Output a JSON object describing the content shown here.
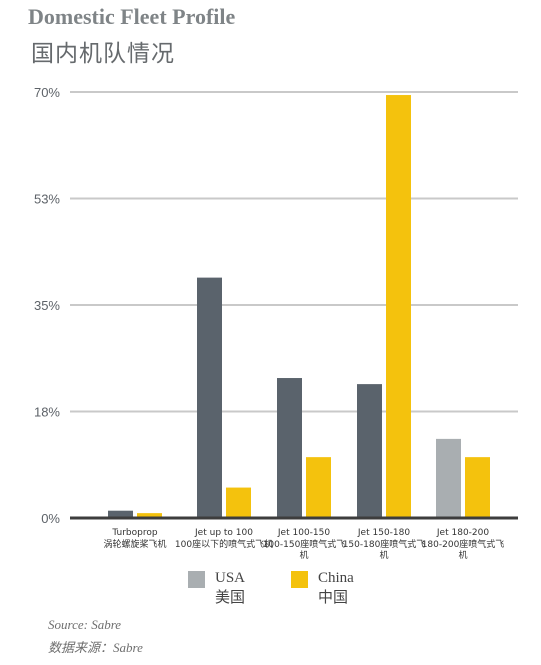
{
  "header": {
    "title_en": "Domestic Fleet Profile",
    "title_zh": "国内机队情况"
  },
  "chart_data": {
    "type": "bar",
    "yticks": [
      "0%",
      "18%",
      "35%",
      "53%",
      "70%"
    ],
    "ylim": [
      0,
      70
    ],
    "grid": true,
    "categories": [
      {
        "en": "Turboprop",
        "zh": "涡轮螺旋桨飞机"
      },
      {
        "en": "Jet up to 100",
        "zh": "100座以下的喷气式飞机"
      },
      {
        "en": "Jet 100-150",
        "zh": "100-150座喷气式飞机"
      },
      {
        "en": "Jet 150-180",
        "zh": "150-180座喷气式飞机"
      },
      {
        "en": "Jet 180-200",
        "zh": "180-200座喷气式飞机"
      }
    ],
    "series": [
      {
        "name": "USA",
        "name_zh": "美国",
        "color": "#5a636c",
        "values": [
          1.2,
          39.5,
          23.0,
          22.0,
          13.0
        ],
        "point_colors": [
          "#5a636c",
          "#5a636c",
          "#5a636c",
          "#5a636c",
          "#a9aeb1"
        ]
      },
      {
        "name": "China",
        "name_zh": "中国",
        "color": "#f4c20d",
        "values": [
          0.8,
          5.0,
          10.0,
          69.5,
          10.0
        ]
      }
    ]
  },
  "legend": {
    "usa": {
      "en": "USA",
      "zh": "美国",
      "color": "#a9aeb1"
    },
    "china": {
      "en": "China",
      "zh": "中国",
      "color": "#f4c20d"
    }
  },
  "source": {
    "en": "Source: Sabre",
    "zh": "数据来源：Sabre"
  }
}
